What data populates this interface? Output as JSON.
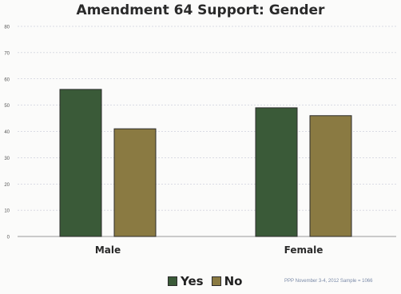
{
  "chart_data": {
    "type": "bar",
    "title": "Amendment 64 Support: Gender",
    "categories": [
      "Male",
      "Female"
    ],
    "series": [
      {
        "name": "Yes",
        "values": [
          56,
          49
        ],
        "color": "#3a5a38"
      },
      {
        "name": "No",
        "values": [
          41,
          46
        ],
        "color": "#8a7a42"
      }
    ],
    "ylim": [
      0,
      80
    ],
    "yticks": [
      "0",
      "10",
      "20",
      "30",
      "40",
      "50",
      "60",
      "70",
      "80"
    ],
    "grid": true,
    "legend": "bottom"
  },
  "source_note": "PPP November 3-4, 2012 Sample = 1066"
}
